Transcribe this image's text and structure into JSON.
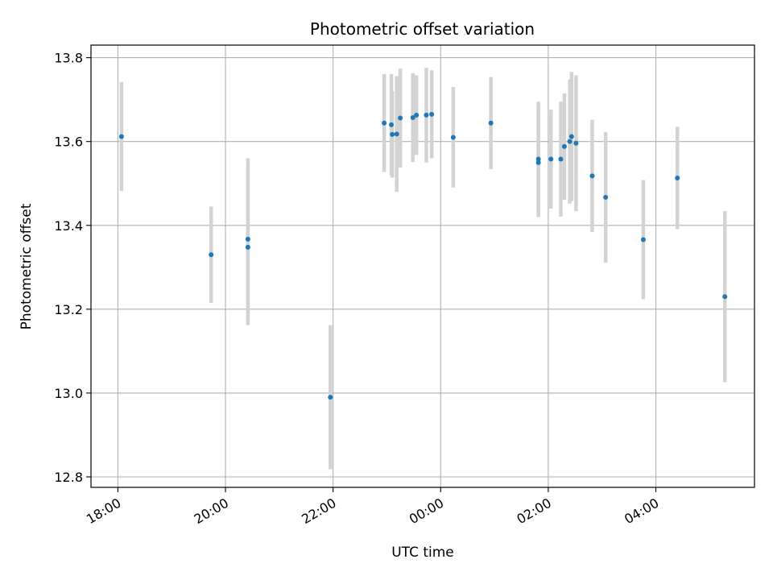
{
  "chart_data": {
    "type": "scatter",
    "title": "Photometric offset variation",
    "xlabel": "UTC time",
    "ylabel": "Photometric offset",
    "x_is_time": true,
    "xlim": [
      "17:30",
      "05:50"
    ],
    "ylim": [
      12.775,
      13.83
    ],
    "x_ticks": [
      "18:00",
      "20:00",
      "22:00",
      "00:00",
      "02:00",
      "04:00"
    ],
    "y_ticks": [
      12.8,
      13.0,
      13.2,
      13.4,
      13.6,
      13.8
    ],
    "grid": true,
    "legend": "none",
    "colors": {
      "point": "#1f77b4",
      "errorbar": "#d3d3d3",
      "grid": "#b0b0b0"
    },
    "points": [
      {
        "x": "18:04",
        "y": 13.612,
        "err": 0.13
      },
      {
        "x": "19:44",
        "y": 13.33,
        "err": 0.115
      },
      {
        "x": "20:25",
        "y": 13.367,
        "err": 0.193
      },
      {
        "x": "20:25",
        "y": 13.348,
        "err": 0.186
      },
      {
        "x": "21:57",
        "y": 12.99,
        "err": 0.172
      },
      {
        "x": "22:57",
        "y": 13.644,
        "err": 0.117
      },
      {
        "x": "23:05",
        "y": 13.64,
        "err": 0.121
      },
      {
        "x": "23:06",
        "y": 13.617,
        "err": 0.103
      },
      {
        "x": "23:11",
        "y": 13.618,
        "err": 0.138
      },
      {
        "x": "23:15",
        "y": 13.656,
        "err": 0.118
      },
      {
        "x": "23:29",
        "y": 13.657,
        "err": 0.106
      },
      {
        "x": "23:33",
        "y": 13.663,
        "err": 0.095
      },
      {
        "x": "23:44",
        "y": 13.663,
        "err": 0.113
      },
      {
        "x": "23:50",
        "y": 13.665,
        "err": 0.105
      },
      {
        "x": "00:14",
        "y": 13.61,
        "err": 0.12
      },
      {
        "x": "00:56",
        "y": 13.644,
        "err": 0.11
      },
      {
        "x": "01:49",
        "y": 13.558,
        "err": 0.137
      },
      {
        "x": "01:49",
        "y": 13.55,
        "err": 0.13
      },
      {
        "x": "02:03",
        "y": 13.558,
        "err": 0.118
      },
      {
        "x": "02:14",
        "y": 13.558,
        "err": 0.137
      },
      {
        "x": "02:18",
        "y": 13.588,
        "err": 0.127
      },
      {
        "x": "02:24",
        "y": 13.6,
        "err": 0.148
      },
      {
        "x": "02:26",
        "y": 13.612,
        "err": 0.154
      },
      {
        "x": "02:31",
        "y": 13.596,
        "err": 0.162
      },
      {
        "x": "02:49",
        "y": 13.518,
        "err": 0.134
      },
      {
        "x": "03:04",
        "y": 13.467,
        "err": 0.156
      },
      {
        "x": "03:46",
        "y": 13.366,
        "err": 0.142
      },
      {
        "x": "04:24",
        "y": 13.513,
        "err": 0.122
      },
      {
        "x": "05:17",
        "y": 13.23,
        "err": 0.204
      }
    ]
  }
}
